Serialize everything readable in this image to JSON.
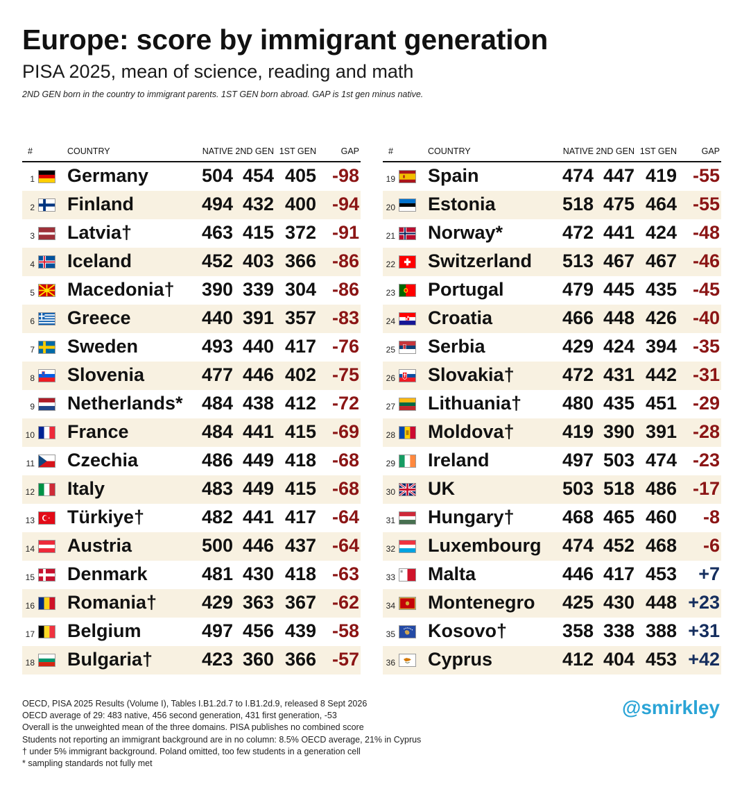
{
  "title": "Europe: score by immigrant generation",
  "subtitle": "PISA 2025, mean of science, reading and math",
  "note": "2ND GEN born in the country to immigrant parents. 1ST GEN born abroad. GAP is 1st gen minus native.",
  "headers": {
    "num": "#",
    "country": "COUNTRY",
    "native": "NATIVE",
    "gen2": "2ND GEN",
    "gen1": "1ST GEN",
    "gap": "GAP"
  },
  "colors": {
    "negative_gap": "#8b1515",
    "positive_gap": "#152e5e",
    "shaded_row": "#f8f1e1",
    "handle": "#2aa4d6"
  },
  "chart_data": {
    "type": "table",
    "columns": [
      "#",
      "COUNTRY",
      "NATIVE",
      "2ND GEN",
      "1ST GEN",
      "GAP"
    ],
    "rows": [
      {
        "rank": 1,
        "flag": "germany-flag",
        "country": "Germany",
        "native": 504,
        "gen2": 454,
        "gen1": 405,
        "gap": "-98"
      },
      {
        "rank": 2,
        "flag": "finland-flag",
        "country": "Finland",
        "native": 494,
        "gen2": 432,
        "gen1": 400,
        "gap": "-94"
      },
      {
        "rank": 3,
        "flag": "latvia-flag",
        "country": "Latvia†",
        "native": 463,
        "gen2": 415,
        "gen1": 372,
        "gap": "-91"
      },
      {
        "rank": 4,
        "flag": "iceland-flag",
        "country": "Iceland",
        "native": 452,
        "gen2": 403,
        "gen1": 366,
        "gap": "-86"
      },
      {
        "rank": 5,
        "flag": "macedonia-flag",
        "country": "Macedonia†",
        "native": 390,
        "gen2": 339,
        "gen1": 304,
        "gap": "-86"
      },
      {
        "rank": 6,
        "flag": "greece-flag",
        "country": "Greece",
        "native": 440,
        "gen2": 391,
        "gen1": 357,
        "gap": "-83"
      },
      {
        "rank": 7,
        "flag": "sweden-flag",
        "country": "Sweden",
        "native": 493,
        "gen2": 440,
        "gen1": 417,
        "gap": "-76"
      },
      {
        "rank": 8,
        "flag": "slovenia-flag",
        "country": "Slovenia",
        "native": 477,
        "gen2": 446,
        "gen1": 402,
        "gap": "-75"
      },
      {
        "rank": 9,
        "flag": "netherlands-flag",
        "country": "Netherlands*",
        "native": 484,
        "gen2": 438,
        "gen1": 412,
        "gap": "-72"
      },
      {
        "rank": 10,
        "flag": "france-flag",
        "country": "France",
        "native": 484,
        "gen2": 441,
        "gen1": 415,
        "gap": "-69"
      },
      {
        "rank": 11,
        "flag": "czechia-flag",
        "country": "Czechia",
        "native": 486,
        "gen2": 449,
        "gen1": 418,
        "gap": "-68"
      },
      {
        "rank": 12,
        "flag": "italy-flag",
        "country": "Italy",
        "native": 483,
        "gen2": 449,
        "gen1": 415,
        "gap": "-68"
      },
      {
        "rank": 13,
        "flag": "turkiye-flag",
        "country": "Türkiye†",
        "native": 482,
        "gen2": 441,
        "gen1": 417,
        "gap": "-64"
      },
      {
        "rank": 14,
        "flag": "austria-flag",
        "country": "Austria",
        "native": 500,
        "gen2": 446,
        "gen1": 437,
        "gap": "-64"
      },
      {
        "rank": 15,
        "flag": "denmark-flag",
        "country": "Denmark",
        "native": 481,
        "gen2": 430,
        "gen1": 418,
        "gap": "-63"
      },
      {
        "rank": 16,
        "flag": "romania-flag",
        "country": "Romania†",
        "native": 429,
        "gen2": 363,
        "gen1": 367,
        "gap": "-62"
      },
      {
        "rank": 17,
        "flag": "belgium-flag",
        "country": "Belgium",
        "native": 497,
        "gen2": 456,
        "gen1": 439,
        "gap": "-58"
      },
      {
        "rank": 18,
        "flag": "bulgaria-flag",
        "country": "Bulgaria†",
        "native": 423,
        "gen2": 360,
        "gen1": 366,
        "gap": "-57"
      },
      {
        "rank": 19,
        "flag": "spain-flag",
        "country": "Spain",
        "native": 474,
        "gen2": 447,
        "gen1": 419,
        "gap": "-55"
      },
      {
        "rank": 20,
        "flag": "estonia-flag",
        "country": "Estonia",
        "native": 518,
        "gen2": 475,
        "gen1": 464,
        "gap": "-55"
      },
      {
        "rank": 21,
        "flag": "norway-flag",
        "country": "Norway*",
        "native": 472,
        "gen2": 441,
        "gen1": 424,
        "gap": "-48"
      },
      {
        "rank": 22,
        "flag": "switzerland-flag",
        "country": "Switzerland",
        "native": 513,
        "gen2": 467,
        "gen1": 467,
        "gap": "-46"
      },
      {
        "rank": 23,
        "flag": "portugal-flag",
        "country": "Portugal",
        "native": 479,
        "gen2": 445,
        "gen1": 435,
        "gap": "-45"
      },
      {
        "rank": 24,
        "flag": "croatia-flag",
        "country": "Croatia",
        "native": 466,
        "gen2": 448,
        "gen1": 426,
        "gap": "-40"
      },
      {
        "rank": 25,
        "flag": "serbia-flag",
        "country": "Serbia",
        "native": 429,
        "gen2": 424,
        "gen1": 394,
        "gap": "-35"
      },
      {
        "rank": 26,
        "flag": "slovakia-flag",
        "country": "Slovakia†",
        "native": 472,
        "gen2": 431,
        "gen1": 442,
        "gap": "-31"
      },
      {
        "rank": 27,
        "flag": "lithuania-flag",
        "country": "Lithuania†",
        "native": 480,
        "gen2": 435,
        "gen1": 451,
        "gap": "-29"
      },
      {
        "rank": 28,
        "flag": "moldova-flag",
        "country": "Moldova†",
        "native": 419,
        "gen2": 390,
        "gen1": 391,
        "gap": "-28"
      },
      {
        "rank": 29,
        "flag": "ireland-flag",
        "country": "Ireland",
        "native": 497,
        "gen2": 503,
        "gen1": 474,
        "gap": "-23"
      },
      {
        "rank": 30,
        "flag": "uk-flag",
        "country": "UK",
        "native": 503,
        "gen2": 518,
        "gen1": 486,
        "gap": "-17"
      },
      {
        "rank": 31,
        "flag": "hungary-flag",
        "country": "Hungary†",
        "native": 468,
        "gen2": 465,
        "gen1": 460,
        "gap": "-8"
      },
      {
        "rank": 32,
        "flag": "luxembourg-flag",
        "country": "Luxembourg",
        "native": 474,
        "gen2": 452,
        "gen1": 468,
        "gap": "-6"
      },
      {
        "rank": 33,
        "flag": "malta-flag",
        "country": "Malta",
        "native": 446,
        "gen2": 417,
        "gen1": 453,
        "gap": "+7"
      },
      {
        "rank": 34,
        "flag": "montenegro-flag",
        "country": "Montenegro",
        "native": 425,
        "gen2": 430,
        "gen1": 448,
        "gap": "+23"
      },
      {
        "rank": 35,
        "flag": "kosovo-flag",
        "country": "Kosovo†",
        "native": 358,
        "gen2": 338,
        "gen1": 388,
        "gap": "+31"
      },
      {
        "rank": 36,
        "flag": "cyprus-flag",
        "country": "Cyprus",
        "native": 412,
        "gen2": 404,
        "gen1": 453,
        "gap": "+42"
      }
    ]
  },
  "footer": [
    "OECD, PISA 2025 Results (Volume I), Tables I.B1.2d.7 to I.B1.2d.9, released 8 Sept 2026",
    "OECD average of 29: 483 native, 456 second generation, 431 first generation, -53",
    "Overall is the unweighted mean of the three domains. PISA publishes no combined score",
    "Students not reporting an immigrant background are in no column: 8.5% OECD average, 21% in Cyprus",
    "† under 5% immigrant background. Poland omitted, too few students in a generation cell",
    "* sampling standards not fully met"
  ],
  "handle": "@smirkley"
}
